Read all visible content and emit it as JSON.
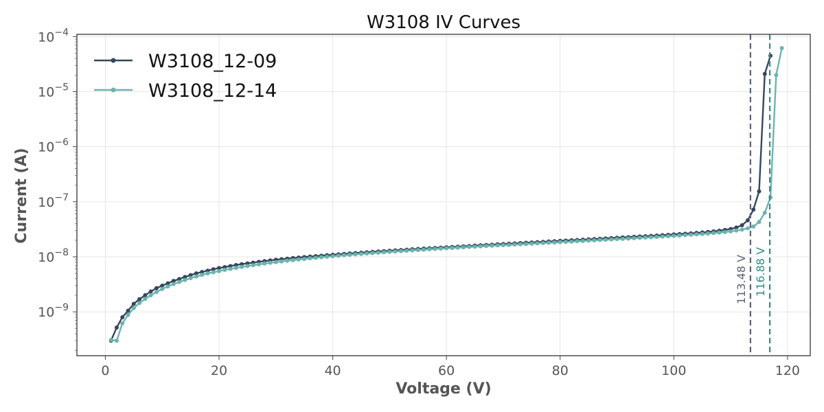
{
  "chart_data": {
    "type": "line",
    "title": "W3108 IV Curves",
    "xlabel": "Voltage (V)",
    "ylabel": "Current (A)",
    "xlim": [
      -5,
      124
    ],
    "ylim": [
      1.6e-10,
      0.00011
    ],
    "yscale": "log",
    "grid": true,
    "legend_position": "top-left",
    "x_ticks": [
      0,
      20,
      40,
      60,
      80,
      100,
      120
    ],
    "x_tick_labels": [
      "0",
      "20",
      "40",
      "60",
      "80",
      "100",
      "120"
    ],
    "y_ticks": [
      {
        "value": 1e-09,
        "base": "10",
        "exp": "−9"
      },
      {
        "value": 1e-08,
        "base": "10",
        "exp": "−8"
      },
      {
        "value": 1e-07,
        "base": "10",
        "exp": "−7"
      },
      {
        "value": 1e-06,
        "base": "10",
        "exp": "−6"
      },
      {
        "value": 1e-05,
        "base": "10",
        "exp": "−5"
      },
      {
        "value": 0.0001,
        "base": "10",
        "exp": "−4"
      }
    ],
    "series": [
      {
        "name": "W3108_12-09",
        "color": "#34475c",
        "x": [
          1,
          2,
          3,
          4,
          5,
          6,
          7,
          8,
          9,
          10,
          11,
          12,
          13,
          14,
          15,
          16,
          17,
          18,
          19,
          20,
          21,
          22,
          23,
          24,
          25,
          26,
          27,
          28,
          29,
          30,
          31,
          32,
          33,
          34,
          35,
          36,
          37,
          38,
          39,
          40,
          41,
          42,
          43,
          44,
          45,
          46,
          47,
          48,
          49,
          50,
          51,
          52,
          53,
          54,
          55,
          56,
          57,
          58,
          59,
          60,
          61,
          62,
          63,
          64,
          65,
          66,
          67,
          68,
          69,
          70,
          71,
          72,
          73,
          74,
          75,
          76,
          77,
          78,
          79,
          80,
          81,
          82,
          83,
          84,
          85,
          86,
          87,
          88,
          89,
          90,
          91,
          92,
          93,
          94,
          95,
          96,
          97,
          98,
          99,
          100,
          101,
          102,
          103,
          104,
          105,
          106,
          107,
          108,
          109,
          110,
          111,
          112,
          113,
          114,
          115,
          116,
          117
        ],
        "y": [
          3e-10,
          5.2e-10,
          8e-10,
          1.05e-09,
          1.4e-09,
          1.7e-09,
          2e-09,
          2.35e-09,
          2.7e-09,
          3e-09,
          3.3e-09,
          3.65e-09,
          3.95e-09,
          4.3e-09,
          4.65e-09,
          5e-09,
          5.3e-09,
          5.6e-09,
          5.95e-09,
          6.25e-09,
          6.5e-09,
          6.8e-09,
          7.1e-09,
          7.35e-09,
          7.6e-09,
          7.85e-09,
          8.1e-09,
          8.35e-09,
          8.6e-09,
          8.85e-09,
          9.05e-09,
          9.25e-09,
          9.5e-09,
          9.7e-09,
          9.9e-09,
          1.01e-08,
          1.03e-08,
          1.05e-08,
          1.07e-08,
          1.09e-08,
          1.11e-08,
          1.13e-08,
          1.15e-08,
          1.17e-08,
          1.19e-08,
          1.21e-08,
          1.23e-08,
          1.25e-08,
          1.27e-08,
          1.29e-08,
          1.31e-08,
          1.33e-08,
          1.35e-08,
          1.37e-08,
          1.39e-08,
          1.41e-08,
          1.43e-08,
          1.45e-08,
          1.47e-08,
          1.49e-08,
          1.51e-08,
          1.53e-08,
          1.55e-08,
          1.57e-08,
          1.6e-08,
          1.62e-08,
          1.64e-08,
          1.66e-08,
          1.69e-08,
          1.71e-08,
          1.73e-08,
          1.75e-08,
          1.78e-08,
          1.8e-08,
          1.82e-08,
          1.85e-08,
          1.87e-08,
          1.9e-08,
          1.92e-08,
          1.95e-08,
          1.97e-08,
          2e-08,
          2.02e-08,
          2.05e-08,
          2.08e-08,
          2.1e-08,
          2.13e-08,
          2.16e-08,
          2.19e-08,
          2.22e-08,
          2.25e-08,
          2.28e-08,
          2.31e-08,
          2.34e-08,
          2.37e-08,
          2.4e-08,
          2.44e-08,
          2.47e-08,
          2.51e-08,
          2.55e-08,
          2.59e-08,
          2.63e-08,
          2.67e-08,
          2.72e-08,
          2.77e-08,
          2.83e-08,
          2.9e-08,
          2.98e-08,
          3.08e-08,
          3.2e-08,
          3.4e-08,
          3.75e-08,
          4.6e-08,
          7.2e-08,
          1.55e-07,
          2.1e-05,
          4.5e-05
        ]
      },
      {
        "name": "W3108_12-14",
        "color": "#6db3ae",
        "x": [
          1,
          2,
          3,
          4,
          5,
          6,
          7,
          8,
          9,
          10,
          11,
          12,
          13,
          14,
          15,
          16,
          17,
          18,
          19,
          20,
          21,
          22,
          23,
          24,
          25,
          26,
          27,
          28,
          29,
          30,
          31,
          32,
          33,
          34,
          35,
          36,
          37,
          38,
          39,
          40,
          41,
          42,
          43,
          44,
          45,
          46,
          47,
          48,
          49,
          50,
          51,
          52,
          53,
          54,
          55,
          56,
          57,
          58,
          59,
          60,
          61,
          62,
          63,
          64,
          65,
          66,
          67,
          68,
          69,
          70,
          71,
          72,
          73,
          74,
          75,
          76,
          77,
          78,
          79,
          80,
          81,
          82,
          83,
          84,
          85,
          86,
          87,
          88,
          89,
          90,
          91,
          92,
          93,
          94,
          95,
          96,
          97,
          98,
          99,
          100,
          101,
          102,
          103,
          104,
          105,
          106,
          107,
          108,
          109,
          110,
          111,
          112,
          113,
          114,
          115,
          116,
          117,
          118,
          119
        ],
        "y": [
          3.1e-10,
          3e-10,
          6.2e-10,
          8.8e-10,
          1.17e-09,
          1.45e-09,
          1.72e-09,
          2e-09,
          2.3e-09,
          2.6e-09,
          2.9e-09,
          3.2e-09,
          3.5e-09,
          3.8e-09,
          4.1e-09,
          4.4e-09,
          4.7e-09,
          5e-09,
          5.25e-09,
          5.5e-09,
          5.8e-09,
          6.05e-09,
          6.3e-09,
          6.55e-09,
          6.8e-09,
          7.05e-09,
          7.3e-09,
          7.55e-09,
          7.8e-09,
          8e-09,
          8.25e-09,
          8.5e-09,
          8.7e-09,
          8.95e-09,
          9.15e-09,
          9.4e-09,
          9.6e-09,
          9.85e-09,
          1.005e-08,
          1.025e-08,
          1.05e-08,
          1.07e-08,
          1.09e-08,
          1.11e-08,
          1.13e-08,
          1.15e-08,
          1.17e-08,
          1.19e-08,
          1.21e-08,
          1.23e-08,
          1.25e-08,
          1.27e-08,
          1.29e-08,
          1.31e-08,
          1.33e-08,
          1.35e-08,
          1.37e-08,
          1.39e-08,
          1.41e-08,
          1.43e-08,
          1.45e-08,
          1.47e-08,
          1.49e-08,
          1.51e-08,
          1.53e-08,
          1.55e-08,
          1.57e-08,
          1.59e-08,
          1.61e-08,
          1.63e-08,
          1.65e-08,
          1.67e-08,
          1.69e-08,
          1.71e-08,
          1.73e-08,
          1.76e-08,
          1.78e-08,
          1.8e-08,
          1.82e-08,
          1.85e-08,
          1.87e-08,
          1.89e-08,
          1.92e-08,
          1.94e-08,
          1.97e-08,
          1.99e-08,
          2.02e-08,
          2.04e-08,
          2.07e-08,
          2.1e-08,
          2.12e-08,
          2.15e-08,
          2.18e-08,
          2.21e-08,
          2.24e-08,
          2.27e-08,
          2.3e-08,
          2.33e-08,
          2.37e-08,
          2.4e-08,
          2.44e-08,
          2.48e-08,
          2.52e-08,
          2.56e-08,
          2.6e-08,
          2.65e-08,
          2.7e-08,
          2.76e-08,
          2.82e-08,
          2.9e-08,
          3e-08,
          3.12e-08,
          3.3e-08,
          3.55e-08,
          4.3e-08,
          6.3e-08,
          1.2e-07,
          2e-05,
          6.2e-05
        ]
      }
    ],
    "reference_lines": [
      {
        "x": 113.48,
        "label": "113.48 V",
        "color": "#5c6375"
      },
      {
        "x": 116.88,
        "label": "116.88 V",
        "color": "#2e8c85"
      }
    ]
  }
}
